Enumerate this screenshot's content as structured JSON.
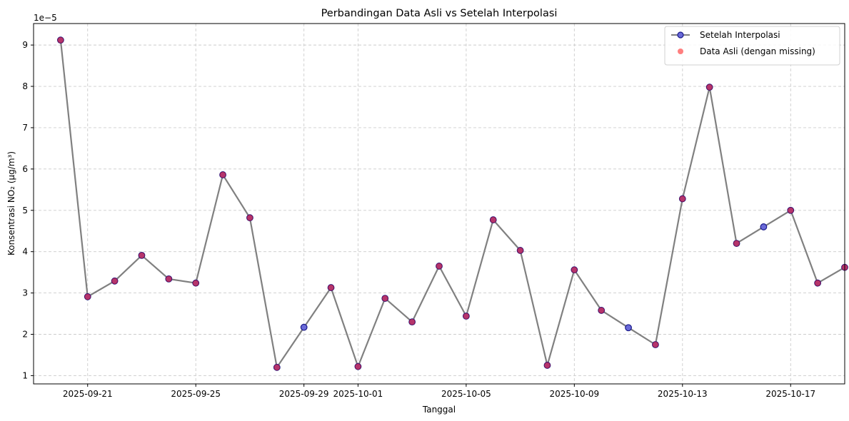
{
  "chart_data": {
    "type": "line",
    "title": "Perbandingan Data Asli vs Setelah Interpolasi",
    "xlabel": "Tanggal",
    "ylabel": "Konsentrasi NO₂ (µg/m³)",
    "y_offset_label": "1e−5",
    "y_scale": 1e-05,
    "ylim": [
      0.8,
      9.52
    ],
    "xlim": [
      "2025-09-19",
      "2025-10-19"
    ],
    "x_ticks": [
      "2025-09-21",
      "2025-09-25",
      "2025-09-29",
      "2025-10-01",
      "2025-10-05",
      "2025-10-09",
      "2025-10-13",
      "2025-10-17"
    ],
    "y_ticks": [
      1,
      2,
      3,
      4,
      5,
      6,
      7,
      8,
      9
    ],
    "grid": true,
    "legend_position": "top-right",
    "x": [
      "2025-09-20",
      "2025-09-21",
      "2025-09-22",
      "2025-09-23",
      "2025-09-24",
      "2025-09-25",
      "2025-09-26",
      "2025-09-27",
      "2025-09-28",
      "2025-09-29",
      "2025-09-30",
      "2025-10-01",
      "2025-10-02",
      "2025-10-03",
      "2025-10-04",
      "2025-10-05",
      "2025-10-06",
      "2025-10-07",
      "2025-10-08",
      "2025-10-09",
      "2025-10-10",
      "2025-10-11",
      "2025-10-12",
      "2025-10-13",
      "2025-10-14",
      "2025-10-15",
      "2025-10-16",
      "2025-10-17",
      "2025-10-18",
      "2025-10-19"
    ],
    "series": [
      {
        "name": "Setelah Interpolasi",
        "line_color": "#808080",
        "marker_face": "#6a6ad8",
        "marker_edge": "#1a1a8a",
        "values": [
          9.12,
          2.91,
          3.29,
          3.91,
          3.34,
          3.24,
          5.86,
          4.82,
          1.2,
          2.17,
          3.13,
          1.22,
          2.87,
          2.3,
          3.65,
          2.44,
          4.77,
          4.03,
          1.25,
          3.56,
          2.58,
          2.16,
          1.75,
          5.28,
          7.98,
          4.2,
          4.6,
          5.0,
          3.24,
          3.62
        ]
      },
      {
        "name": "Data Asli (dengan missing)",
        "marker_color": "#ff0000",
        "marker_alpha": 0.5,
        "values": [
          9.12,
          2.91,
          3.29,
          3.91,
          3.34,
          3.24,
          5.86,
          4.82,
          1.2,
          null,
          3.13,
          1.22,
          2.87,
          2.3,
          3.65,
          2.44,
          4.77,
          4.03,
          1.25,
          3.56,
          2.58,
          null,
          1.75,
          5.28,
          7.98,
          4.2,
          null,
          5.0,
          3.24,
          3.62
        ]
      }
    ]
  }
}
